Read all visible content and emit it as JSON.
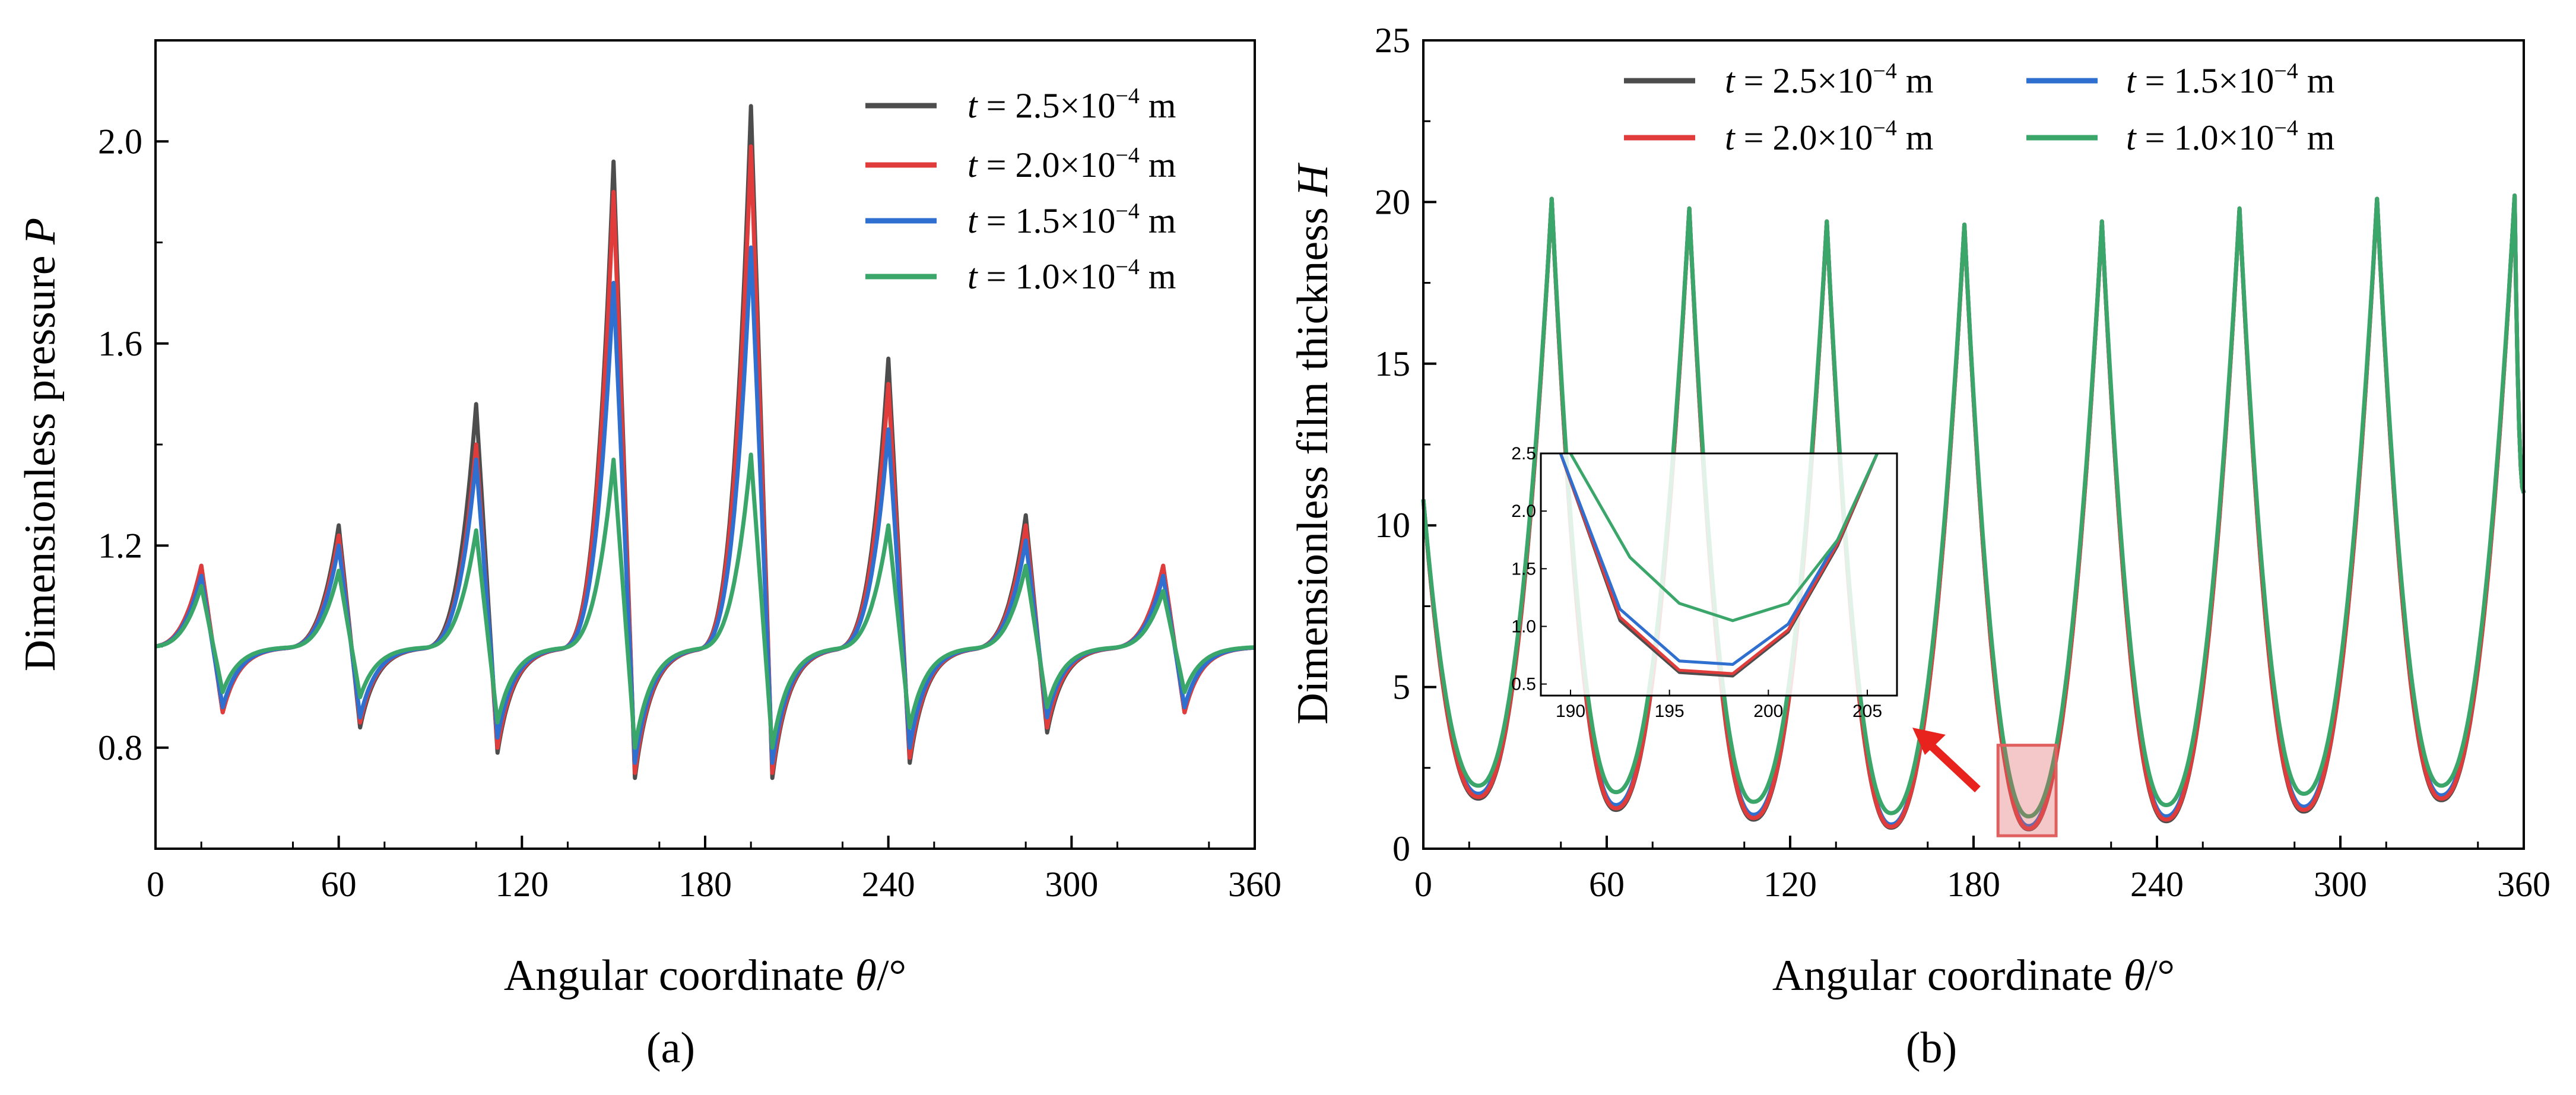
{
  "chart_data": [
    {
      "type": "line",
      "panel_label": "(a)",
      "xlabel": {
        "prefix": "Angular coordinate ",
        "symbol": "θ",
        "suffix": "/°"
      },
      "ylabel": {
        "prefix": "Dimensionless pressure ",
        "symbol": "P"
      },
      "xlim": [
        0,
        360
      ],
      "ylim": [
        0.6,
        2.2
      ],
      "xticks": [
        0,
        60,
        120,
        180,
        240,
        300,
        360
      ],
      "xtick_labels": [
        "0",
        "60",
        "120",
        "180",
        "240",
        "300",
        "360"
      ],
      "yticks": [
        0.8,
        1.2,
        1.6,
        2.0
      ],
      "ytick_labels": [
        "0.8",
        "1.2",
        "1.6",
        "2.0"
      ],
      "legend_position": "top-right",
      "peaks": {
        "angles": [
          15,
          60,
          105,
          150,
          195,
          240,
          285,
          330
        ],
        "baseline": 1.0,
        "heights": {
          "t = 2.5×10^-4 m": [
            1.16,
            1.24,
            1.48,
            1.96,
            2.07,
            1.57,
            1.26,
            1.16
          ],
          "t = 2.0×10^-4 m": [
            1.16,
            1.22,
            1.4,
            1.9,
            1.99,
            1.52,
            1.24,
            1.16
          ],
          "t = 1.5×10^-4 m": [
            1.14,
            1.2,
            1.37,
            1.72,
            1.79,
            1.43,
            1.21,
            1.14
          ],
          "t = 1.0×10^-4 m": [
            1.12,
            1.15,
            1.23,
            1.37,
            1.38,
            1.24,
            1.16,
            1.11
          ]
        },
        "troughs": {
          "t = 2.5×10^-4 m": [
            0.87,
            0.84,
            0.79,
            0.74,
            0.74,
            0.77,
            0.83,
            0.87
          ],
          "t = 2.0×10^-4 m": [
            0.87,
            0.85,
            0.8,
            0.75,
            0.75,
            0.78,
            0.84,
            0.87
          ],
          "t = 1.5×10^-4 m": [
            0.88,
            0.86,
            0.82,
            0.77,
            0.77,
            0.8,
            0.86,
            0.88
          ],
          "t = 1.0×10^-4 m": [
            0.91,
            0.9,
            0.85,
            0.8,
            0.8,
            0.84,
            0.88,
            0.91
          ]
        }
      },
      "series": [
        {
          "key": "t = 2.5×10^-4 m",
          "mantissa": "2.5",
          "color": "#4d4d4d"
        },
        {
          "key": "t = 2.0×10^-4 m",
          "mantissa": "2.0",
          "color": "#e03c3c"
        },
        {
          "key": "t = 1.5×10^-4 m",
          "mantissa": "1.5",
          "color": "#2e6fd0"
        },
        {
          "key": "t = 1.0×10^-4 m",
          "mantissa": "1.0",
          "color": "#3aa66a"
        }
      ]
    },
    {
      "type": "line",
      "panel_label": "(b)",
      "xlabel": {
        "prefix": "Angular coordinate ",
        "symbol": "θ",
        "suffix": "/°"
      },
      "ylabel": {
        "prefix": "Dimensionless film thickness ",
        "symbol": "H"
      },
      "xlim": [
        0,
        360
      ],
      "ylim": [
        0,
        25
      ],
      "xticks": [
        0,
        60,
        120,
        180,
        240,
        300,
        360
      ],
      "xtick_labels": [
        "0",
        "60",
        "120",
        "180",
        "240",
        "300",
        "360"
      ],
      "yticks": [
        0,
        5,
        10,
        15,
        20,
        25
      ],
      "ytick_labels": [
        "0",
        "5",
        "10",
        "15",
        "20",
        "25"
      ],
      "legend_position": "top, two columns",
      "cycle": {
        "period_deg": 45,
        "peak_angles": [
          42,
          87,
          132,
          177,
          222,
          267,
          312,
          357
        ],
        "peak_values": [
          20.1,
          19.8,
          19.4,
          19.3,
          19.4,
          19.8,
          20.1,
          20.2
        ],
        "min_angles": [
          18,
          63,
          108,
          153,
          198,
          243,
          288,
          333
        ],
        "start_value": 10.8,
        "minima": {
          "t = 2.5×10^-4 m": [
            1.55,
            1.2,
            0.9,
            0.65,
            0.6,
            0.85,
            1.15,
            1.5
          ],
          "t = 2.0×10^-4 m": [
            1.6,
            1.25,
            0.95,
            0.68,
            0.62,
            0.9,
            1.2,
            1.55
          ],
          "t = 1.5×10^-4 m": [
            1.7,
            1.35,
            1.05,
            0.75,
            0.7,
            1.0,
            1.3,
            1.65
          ],
          "t = 1.0×10^-4 m": [
            1.95,
            1.75,
            1.45,
            1.1,
            1.0,
            1.35,
            1.7,
            1.95
          ]
        }
      },
      "series": [
        {
          "key": "t = 2.5×10^-4 m",
          "mantissa": "2.5",
          "color": "#4d4d4d"
        },
        {
          "key": "t = 1.5×10^-4 m",
          "mantissa": "1.5",
          "color": "#2e6fd0"
        },
        {
          "key": "t = 2.0×10^-4 m",
          "mantissa": "2.0",
          "color": "#e03c3c"
        },
        {
          "key": "t = 1.0×10^-4 m",
          "mantissa": "1.0",
          "color": "#3aa66a"
        }
      ],
      "highlight_box": {
        "x_range": [
          188,
          207
        ],
        "y_range": [
          0.4,
          3.2
        ],
        "color": "#e06060"
      },
      "arrow_color": "#e8231e",
      "inset": {
        "xlim": [
          188.5,
          206.5
        ],
        "ylim": [
          0.4,
          2.5
        ],
        "xticks": [
          190,
          195,
          200,
          205
        ],
        "xtick_labels": [
          "190",
          "195",
          "200",
          "205"
        ],
        "yticks": [
          0.5,
          1.0,
          1.5,
          2.0,
          2.5
        ],
        "ytick_labels": [
          "0.5",
          "1.0",
          "1.5",
          "2.0",
          "2.5"
        ],
        "series": [
          {
            "key": "t = 2.5×10^-4 m",
            "color": "#4d4d4d",
            "x": [
              189.5,
              192.5,
              195.5,
              198.2,
              201.0,
              203.5,
              205.5
            ],
            "y": [
              2.5,
              1.05,
              0.6,
              0.57,
              0.95,
              1.7,
              2.5
            ]
          },
          {
            "key": "t = 2.0×10^-4 m",
            "color": "#e03c3c",
            "x": [
              189.5,
              192.5,
              195.5,
              198.2,
              201.0,
              203.5,
              205.5
            ],
            "y": [
              2.5,
              1.08,
              0.62,
              0.59,
              0.97,
              1.72,
              2.5
            ]
          },
          {
            "key": "t = 1.5×10^-4 m",
            "color": "#2e6fd0",
            "x": [
              189.5,
              192.5,
              195.5,
              198.2,
              201.0,
              203.5,
              205.5
            ],
            "y": [
              2.5,
              1.15,
              0.7,
              0.67,
              1.02,
              1.75,
              2.5
            ]
          },
          {
            "key": "t = 1.0×10^-4 m",
            "color": "#3aa66a",
            "x": [
              190.0,
              193.0,
              195.5,
              198.2,
              201.0,
              203.5,
              205.5
            ],
            "y": [
              2.5,
              1.6,
              1.2,
              1.05,
              1.2,
              1.75,
              2.5
            ]
          }
        ]
      }
    }
  ]
}
